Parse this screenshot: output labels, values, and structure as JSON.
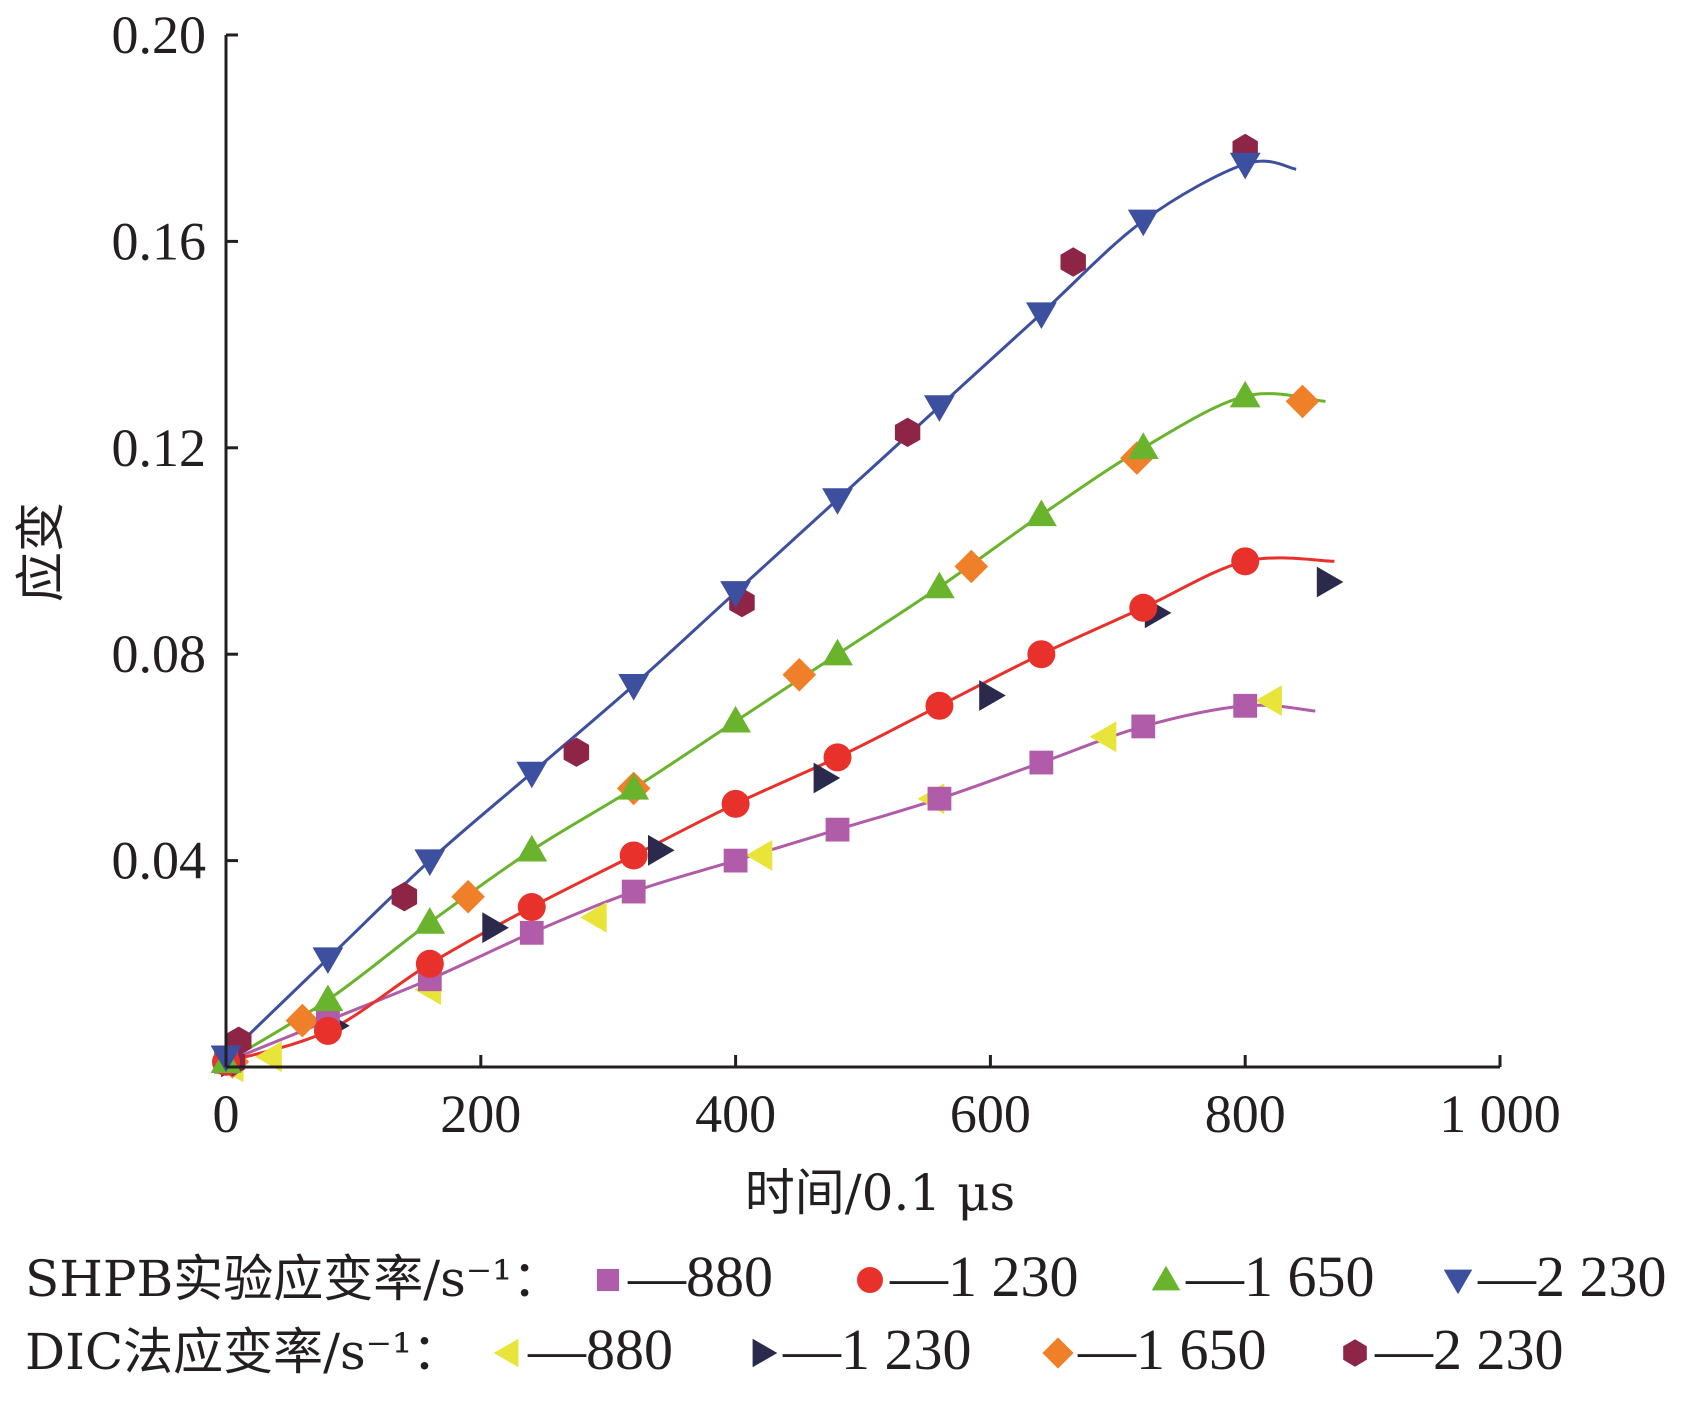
{
  "chart_data": {
    "type": "line",
    "xlabel": "时间/0.1 μs",
    "ylabel": "应变",
    "xlim": [
      0,
      1000
    ],
    "ylim": [
      0,
      0.2
    ],
    "x_ticks": [
      {
        "value": 0,
        "label": "0"
      },
      {
        "value": 200,
        "label": "200"
      },
      {
        "value": 400,
        "label": "400"
      },
      {
        "value": 600,
        "label": "600"
      },
      {
        "value": 800,
        "label": "800"
      },
      {
        "value": 1000,
        "label": "1 000"
      }
    ],
    "y_ticks": [
      {
        "value": 0.04,
        "label": "0.04"
      },
      {
        "value": 0.08,
        "label": "0.08"
      },
      {
        "value": 0.12,
        "label": "0.12"
      },
      {
        "value": 0.16,
        "label": "0.16"
      },
      {
        "value": 0.2,
        "label": "0.20"
      }
    ],
    "grid": false,
    "legend": {
      "position": "bottom",
      "rows": [
        {
          "label": "SHPB实验应变率/s⁻¹：",
          "entries": [
            {
              "series": "shpb_880",
              "text": "—880"
            },
            {
              "series": "shpb_1230",
              "text": "—1 230"
            },
            {
              "series": "shpb_1650",
              "text": "—1 650"
            },
            {
              "series": "shpb_2230",
              "text": "—2 230"
            }
          ]
        },
        {
          "label": "DIC法应变率/s⁻¹：",
          "entries": [
            {
              "series": "dic_880",
              "text": "—880"
            },
            {
              "series": "dic_1230",
              "text": "—1 230"
            },
            {
              "series": "dic_1650",
              "text": "—1 650"
            },
            {
              "series": "dic_2230",
              "text": "—2 230"
            }
          ]
        }
      ]
    },
    "series": [
      {
        "id": "shpb_880",
        "group": "SHPB",
        "rate": "880",
        "color": "#b05ca8",
        "marker": "square",
        "line": true,
        "x": [
          0,
          80,
          160,
          240,
          320,
          400,
          480,
          560,
          640,
          720,
          800
        ],
        "y": [
          0.001,
          0.009,
          0.017,
          0.026,
          0.034,
          0.04,
          0.046,
          0.052,
          0.059,
          0.066,
          0.07
        ],
        "curve_end": {
          "x": 855,
          "y": 0.069
        }
      },
      {
        "id": "shpb_1230",
        "group": "SHPB",
        "rate": "1 230",
        "color": "#e8312a",
        "marker": "circle",
        "line": true,
        "x": [
          0,
          80,
          160,
          240,
          320,
          400,
          480,
          560,
          640,
          720,
          800
        ],
        "y": [
          0.001,
          0.007,
          0.02,
          0.031,
          0.041,
          0.051,
          0.06,
          0.07,
          0.08,
          0.089,
          0.098
        ],
        "curve_end": {
          "x": 870,
          "y": 0.098
        }
      },
      {
        "id": "shpb_1650",
        "group": "SHPB",
        "rate": "1 650",
        "color": "#6ab42d",
        "marker": "triangle-up",
        "line": true,
        "x": [
          0,
          80,
          160,
          240,
          320,
          400,
          480,
          560,
          640,
          720,
          800
        ],
        "y": [
          0.001,
          0.013,
          0.028,
          0.042,
          0.054,
          0.067,
          0.08,
          0.093,
          0.107,
          0.12,
          0.13
        ],
        "curve_end": {
          "x": 863,
          "y": 0.129
        }
      },
      {
        "id": "shpb_2230",
        "group": "SHPB",
        "rate": "2 230",
        "color": "#3d4f9f",
        "marker": "triangle-down",
        "line": true,
        "x": [
          0,
          80,
          160,
          240,
          320,
          400,
          480,
          560,
          640,
          720,
          800
        ],
        "y": [
          0.002,
          0.021,
          0.04,
          0.057,
          0.074,
          0.092,
          0.11,
          0.128,
          0.146,
          0.164,
          0.175
        ],
        "curve_end": {
          "x": 840,
          "y": 0.174
        }
      },
      {
        "id": "dic_880",
        "group": "DIC",
        "rate": "880",
        "color": "#e8e43a",
        "marker": "triangle-left",
        "line": false,
        "x": [
          5,
          35,
          160,
          290,
          420,
          555,
          690,
          820
        ],
        "y": [
          0.0,
          0.002,
          0.015,
          0.029,
          0.041,
          0.052,
          0.064,
          0.071
        ]
      },
      {
        "id": "dic_1230",
        "group": "DIC",
        "rate": "1 230",
        "color": "#2b2a4c",
        "marker": "triangle-right",
        "line": false,
        "x": [
          5,
          85,
          210,
          340,
          470,
          600,
          730,
          865
        ],
        "y": [
          0.001,
          0.008,
          0.027,
          0.042,
          0.056,
          0.072,
          0.088,
          0.094
        ]
      },
      {
        "id": "dic_1650",
        "group": "DIC",
        "rate": "1 650",
        "color": "#f07f2a",
        "marker": "diamond",
        "line": false,
        "x": [
          5,
          60,
          190,
          320,
          450,
          585,
          715,
          845
        ],
        "y": [
          0.001,
          0.009,
          0.033,
          0.054,
          0.076,
          0.097,
          0.118,
          0.129
        ]
      },
      {
        "id": "dic_2230",
        "group": "DIC",
        "rate": "2 230",
        "color": "#8e2547",
        "marker": "hexagon",
        "line": false,
        "x": [
          5,
          10,
          140,
          275,
          405,
          535,
          665,
          800
        ],
        "y": [
          0.001,
          0.005,
          0.033,
          0.061,
          0.09,
          0.123,
          0.156,
          0.178
        ]
      }
    ]
  }
}
